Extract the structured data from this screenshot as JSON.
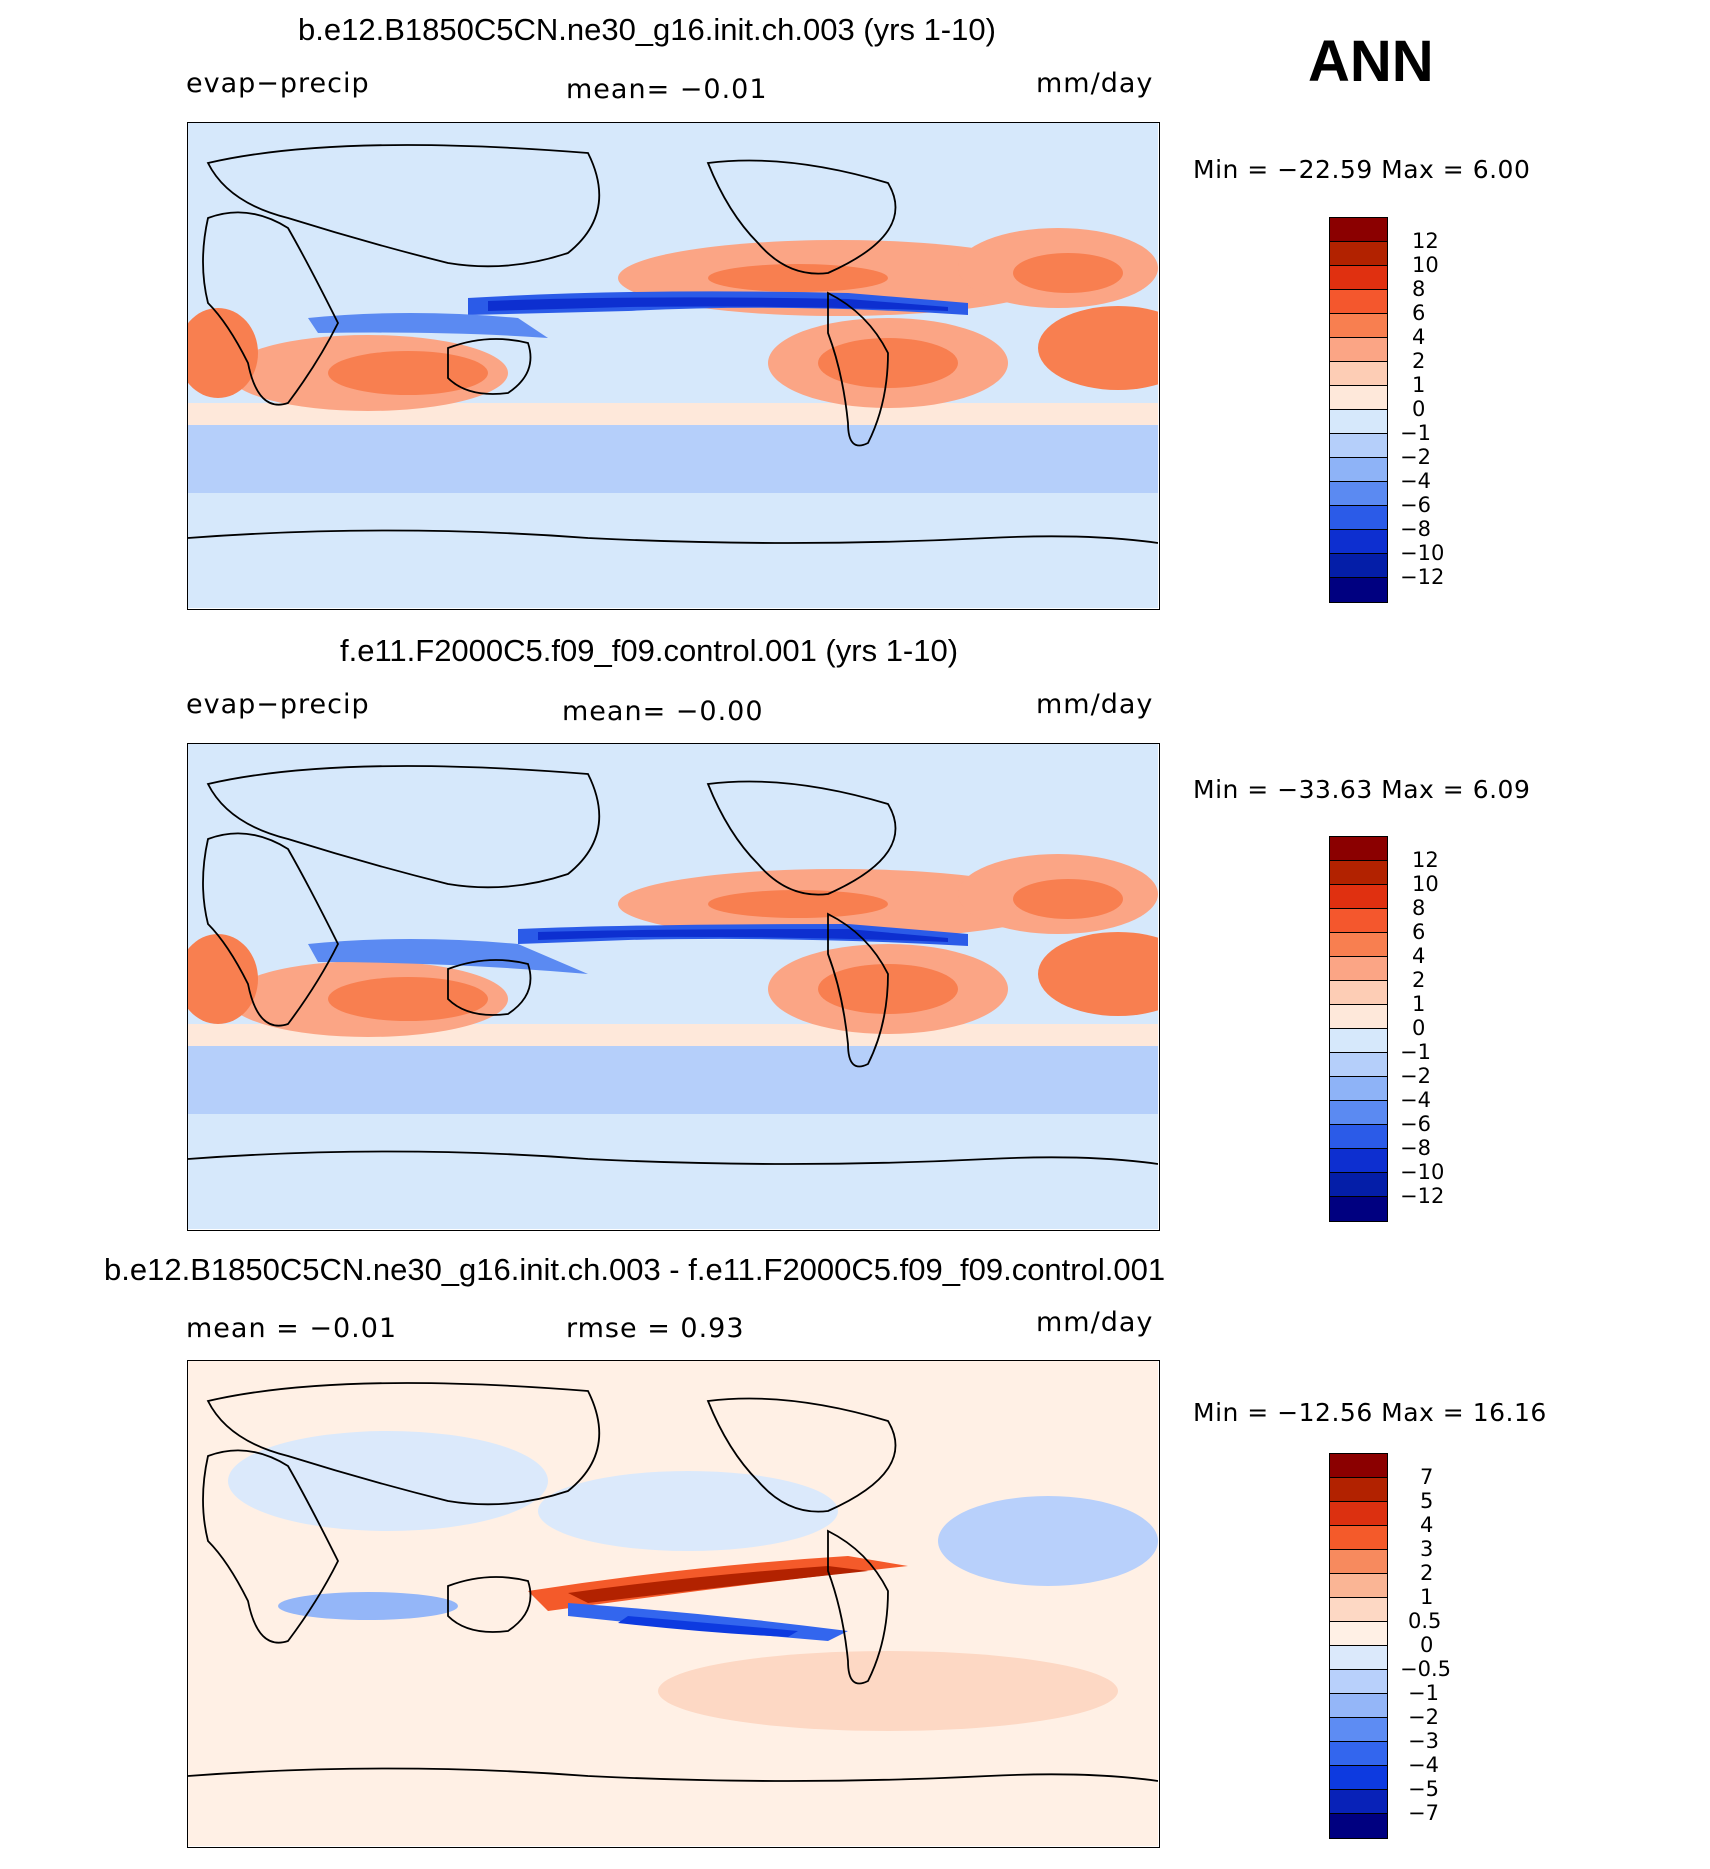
{
  "season": "ANN",
  "units": "mm/day",
  "panels": [
    {
      "title": "b.e12.B1850C5CN.ne30_g16.init.ch.003 (yrs 1-10)",
      "left_label": "evap−precip",
      "center_label": "mean=   −0.01",
      "right_label": "mm/day",
      "minmax": "Min  =  −22.59  Max  =     6.00",
      "colorbar_labels": [
        "12",
        "10",
        "8",
        "6",
        "4",
        "2",
        "1",
        "0",
        "−1",
        "−2",
        "−4",
        "−6",
        "−8",
        "−10",
        "−12"
      ]
    },
    {
      "title": "f.e11.F2000C5.f09_f09.control.001 (yrs 1-10)",
      "left_label": "evap−precip",
      "center_label": "mean=   −0.00",
      "right_label": "mm/day",
      "minmax": "Min  =  −33.63  Max  =     6.09",
      "colorbar_labels": [
        "12",
        "10",
        "8",
        "6",
        "4",
        "2",
        "1",
        "0",
        "−1",
        "−2",
        "−4",
        "−6",
        "−8",
        "−10",
        "−12"
      ]
    },
    {
      "title": "b.e12.B1850C5CN.ne30_g16.init.ch.003 - f.e11.F2000C5.f09_f09.control.001",
      "left_label": "mean  =    −0.01",
      "center_label": "rmse  =      0.93",
      "right_label": "mm/day",
      "minmax": "Min  =  −12.56  Max  =    16.16",
      "colorbar_labels": [
        "7",
        "5",
        "4",
        "3",
        "2",
        "1",
        "0.5",
        "0",
        "−0.5",
        "−1",
        "−2",
        "−3",
        "−4",
        "−5",
        "−7"
      ]
    }
  ],
  "colors": {
    "field_colorbar": [
      "#8b0000",
      "#b22200",
      "#e03010",
      "#f4572d",
      "#f87f50",
      "#fba585",
      "#fdcdb5",
      "#fee8da",
      "#d6e8fb",
      "#b5cffa",
      "#8eb3f7",
      "#5b8af2",
      "#2b5be8",
      "#0d2fd0",
      "#041ea8",
      "#000080"
    ],
    "diff_colorbar": [
      "#8b0000",
      "#b22200",
      "#dc3010",
      "#f45a2a",
      "#f78a5e",
      "#fab595",
      "#fdd8c4",
      "#fff0e5",
      "#dbe9fb",
      "#b8d0fb",
      "#94b6f8",
      "#5d8cf3",
      "#3366ee",
      "#0d3ae0",
      "#0822b8",
      "#000080"
    ],
    "land": "#d9eafc"
  },
  "chart_data": [
    {
      "type": "heatmap",
      "title": "b.e12.B1850C5CN.ne30_g16.init.ch.003 (yrs 1-10)",
      "variable": "evap−precip",
      "units": "mm/day",
      "mean": -0.01,
      "min": -22.59,
      "max": 6.0,
      "contour_levels": [
        -12,
        -10,
        -8,
        -6,
        -4,
        -2,
        -1,
        0,
        1,
        2,
        4,
        6,
        8,
        10,
        12
      ]
    },
    {
      "type": "heatmap",
      "title": "f.e11.F2000C5.f09_f09.control.001 (yrs 1-10)",
      "variable": "evap−precip",
      "units": "mm/day",
      "mean": -0.0,
      "min": -33.63,
      "max": 6.09,
      "contour_levels": [
        -12,
        -10,
        -8,
        -6,
        -4,
        -2,
        -1,
        0,
        1,
        2,
        4,
        6,
        8,
        10,
        12
      ]
    },
    {
      "type": "heatmap",
      "title": "b.e12.B1850C5CN.ne30_g16.init.ch.003 - f.e11.F2000C5.f09_f09.control.001",
      "units": "mm/day",
      "mean": -0.01,
      "rmse": 0.93,
      "min": -12.56,
      "max": 16.16,
      "contour_levels": [
        -7,
        -5,
        -4,
        -3,
        -2,
        -1,
        -0.5,
        0,
        0.5,
        1,
        2,
        3,
        4,
        5,
        7
      ]
    }
  ]
}
